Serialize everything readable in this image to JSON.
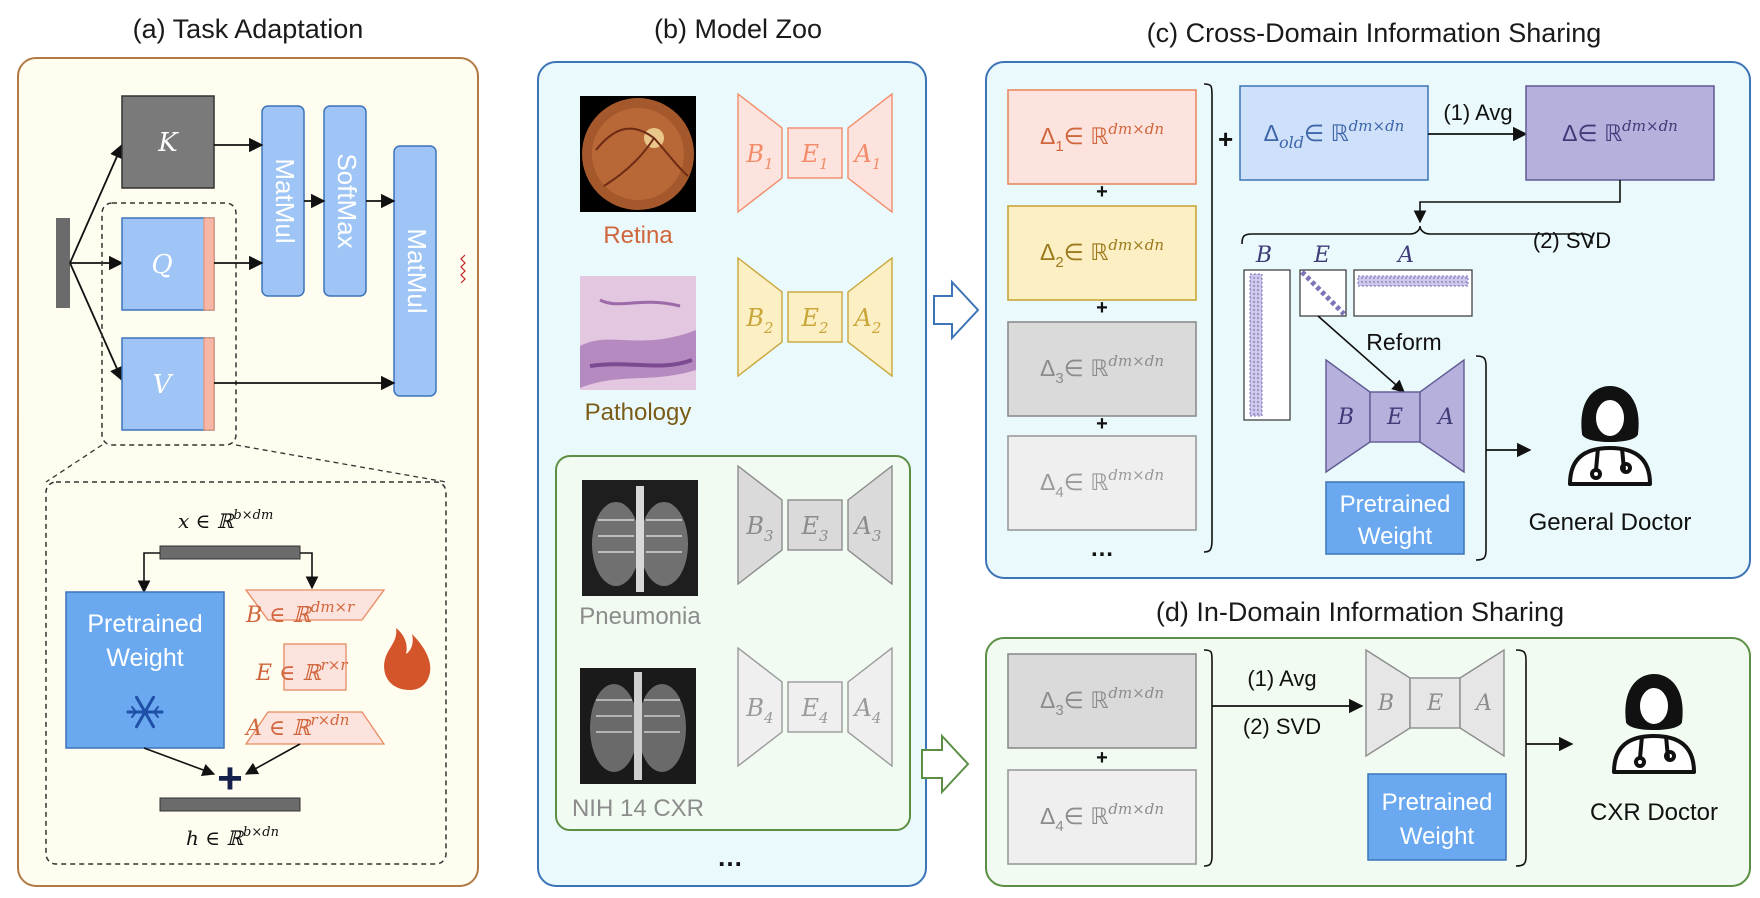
{
  "panel_a": {
    "title": "(a) Task Adaptation",
    "k": "K",
    "q": "Q",
    "v": "V",
    "matmul": "MatMul",
    "softmax": "SoftMax",
    "x_label": "x ∈ ℝ",
    "x_sup": "b×dm",
    "h_label": "h ∈ ℝ",
    "h_sup": "b×dn",
    "pretrained": "Pretrained",
    "weight": "Weight",
    "b_eq": "B ∈ ℝ",
    "b_sup": "dm×r",
    "e_eq": "E ∈ ℝ",
    "e_sup": "r×r",
    "a_eq": "A ∈ ℝ",
    "a_sup": "r×dn",
    "plus": "+",
    "snowflake": "snowflake-icon",
    "flame": "flame-icon"
  },
  "panel_b": {
    "title": "(b) Model Zoo",
    "models": [
      {
        "name": "Retina",
        "b": "B",
        "e": "E",
        "a": "A",
        "idx": "1",
        "color": "#f28c6a"
      },
      {
        "name": "Pathology",
        "b": "B",
        "e": "E",
        "a": "A",
        "idx": "2",
        "color": "#c9a63a"
      },
      {
        "name": "Pneumonia",
        "b": "B",
        "e": "E",
        "a": "A",
        "idx": "3",
        "color": "#8c8c8c"
      },
      {
        "name": "NIH 14 CXR",
        "b": "B",
        "e": "E",
        "a": "A",
        "idx": "4",
        "color": "#9a9a9a"
      }
    ],
    "ellipsis": "…"
  },
  "panel_c": {
    "title": "(c) Cross-Domain Information Sharing",
    "deltas": [
      {
        "d": "Δ",
        "i": "1",
        "rest": "∈ ℝ",
        "sup": "dm×dn"
      },
      {
        "d": "Δ",
        "i": "2",
        "rest": "∈ ℝ",
        "sup": "dm×dn"
      },
      {
        "d": "Δ",
        "i": "3",
        "rest": "∈ ℝ",
        "sup": "dm×dn"
      },
      {
        "d": "Δ",
        "i": "4",
        "rest": "∈ ℝ",
        "sup": "dm×dn"
      }
    ],
    "plus": "+",
    "ellipsis": "…",
    "delta_old": "Δ",
    "old_sub": "old",
    "delta_old_rest": "∈ ℝ",
    "delta_old_sup": "dm×dn",
    "delta": "Δ∈ ℝ",
    "delta_sup": "dm×dn",
    "avg": "(1) Avg",
    "svd": "(2) SVD",
    "b": "B",
    "e": "E",
    "a": "A",
    "reform": "Reform",
    "pretrained": "Pretrained",
    "weight": "Weight",
    "doctor": "General Doctor"
  },
  "panel_d": {
    "title": "(d) In-Domain Information Sharing",
    "deltas": [
      {
        "d": "Δ",
        "i": "3",
        "rest": "∈ ℝ",
        "sup": "dm×dn"
      },
      {
        "d": "Δ",
        "i": "4",
        "rest": "∈ ℝ",
        "sup": "dm×dn"
      }
    ],
    "plus": "+",
    "avg": "(1) Avg",
    "svd": "(2) SVD",
    "b": "B",
    "e": "E",
    "a": "A",
    "pretrained": "Pretrained",
    "weight": "Weight",
    "doctor": "CXR Doctor"
  },
  "colors": {
    "panel_a_bg": "#fefdf0",
    "panel_a_border": "#b07a45",
    "panel_b_bg": "#eaf9fb",
    "panel_b_border": "#3d74b8",
    "panel_d_bg": "#f1fbf1",
    "panel_d_border": "#5c8f45",
    "blue": "#9ec5f5",
    "blue_stroke": "#3d74b8",
    "orange_fill": "#fde3dd",
    "orange_stroke": "#e88a62",
    "yellow_fill": "#fcefc4",
    "yellow_stroke": "#c9a63a",
    "purple_fill": "#b6b0dc",
    "purple_stroke": "#5e5a92"
  }
}
